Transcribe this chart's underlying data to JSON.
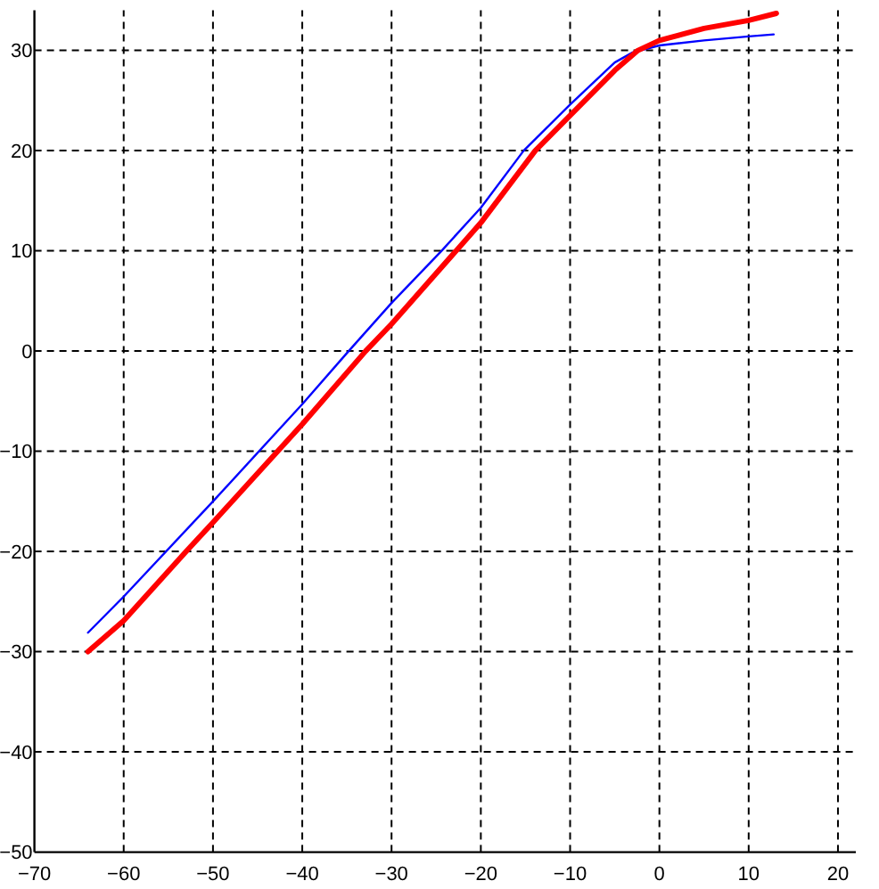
{
  "chart_data": {
    "type": "line",
    "xlim": [
      -70,
      22
    ],
    "xticks": [
      -70,
      -60,
      -50,
      -40,
      -30,
      -20,
      -10,
      0,
      10,
      20
    ],
    "ylim": [
      -50,
      34
    ],
    "yticks": [
      -50,
      -40,
      -30,
      -20,
      -10,
      0,
      10,
      20,
      30
    ],
    "grid": true,
    "line_style": "solid",
    "series": [
      {
        "color": "#0000ff",
        "x": [
          -64,
          -60,
          -50,
          -40,
          -35,
          -30,
          -24.4,
          -20,
          -15.2,
          -10,
          -5,
          -3,
          0,
          5,
          10,
          12.8
        ],
        "values": [
          -28.1,
          -24.5,
          -15.0,
          -5.3,
          -0.2,
          4.8,
          10,
          14.3,
          20,
          24.6,
          28.8,
          29.8,
          30.5,
          31.0,
          31.4,
          31.6
        ]
      },
      {
        "color": "#ff0000",
        "x": [
          -64,
          -60,
          -53,
          -50,
          -40,
          -32.9,
          -30,
          -20,
          -13.9,
          -10,
          -5,
          -2.4,
          0,
          5,
          10,
          13.1
        ],
        "values": [
          -30,
          -26.9,
          -20,
          -17.1,
          -7.3,
          0,
          2.7,
          12.8,
          20,
          23.5,
          28.0,
          30,
          31.0,
          32.2,
          33.0,
          33.7
        ]
      }
    ]
  }
}
